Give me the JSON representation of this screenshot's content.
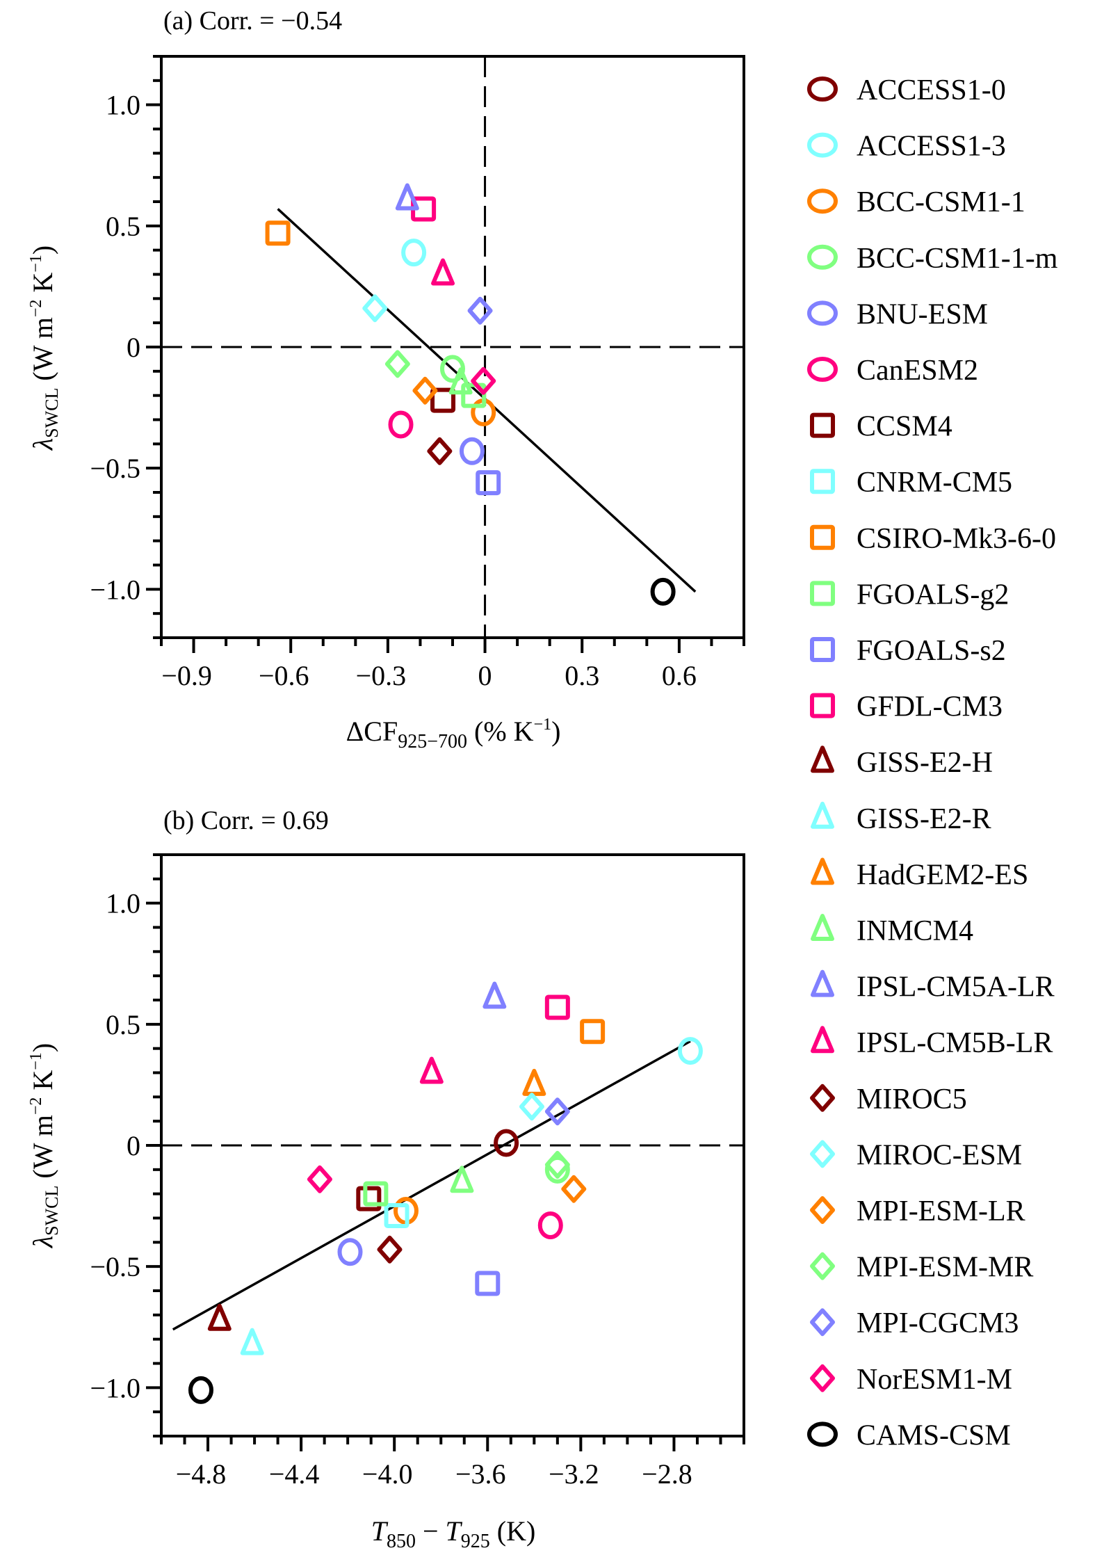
{
  "models": [
    {
      "name": "ACCESS1-0",
      "marker": "circle",
      "color": "#800000"
    },
    {
      "name": "ACCESS1-3",
      "marker": "circle",
      "color": "#80FFFF"
    },
    {
      "name": "BCC-CSM1-1",
      "marker": "circle",
      "color": "#FF8000"
    },
    {
      "name": "BCC-CSM1-1-m",
      "marker": "circle",
      "color": "#80FF80"
    },
    {
      "name": "BNU-ESM",
      "marker": "circle",
      "color": "#8080FF"
    },
    {
      "name": "CanESM2",
      "marker": "circle",
      "color": "#FF0080"
    },
    {
      "name": "CCSM4",
      "marker": "square",
      "color": "#800000"
    },
    {
      "name": "CNRM-CM5",
      "marker": "square",
      "color": "#80FFFF"
    },
    {
      "name": "CSIRO-Mk3-6-0",
      "marker": "square",
      "color": "#FF8000"
    },
    {
      "name": "FGOALS-g2",
      "marker": "square",
      "color": "#80FF80"
    },
    {
      "name": "FGOALS-s2",
      "marker": "square",
      "color": "#8080FF"
    },
    {
      "name": "GFDL-CM3",
      "marker": "square",
      "color": "#FF0080"
    },
    {
      "name": "GISS-E2-H",
      "marker": "triangle",
      "color": "#800000"
    },
    {
      "name": "GISS-E2-R",
      "marker": "triangle",
      "color": "#80FFFF"
    },
    {
      "name": "HadGEM2-ES",
      "marker": "triangle",
      "color": "#FF8000"
    },
    {
      "name": "INMCM4",
      "marker": "triangle",
      "color": "#80FF80"
    },
    {
      "name": "IPSL-CM5A-LR",
      "marker": "triangle",
      "color": "#8080FF"
    },
    {
      "name": "IPSL-CM5B-LR",
      "marker": "triangle",
      "color": "#FF0080"
    },
    {
      "name": "MIROC5",
      "marker": "diamond",
      "color": "#800000"
    },
    {
      "name": "MIROC-ESM",
      "marker": "diamond",
      "color": "#80FFFF"
    },
    {
      "name": "MPI-ESM-LR",
      "marker": "diamond",
      "color": "#FF8000"
    },
    {
      "name": "MPI-ESM-MR",
      "marker": "diamond",
      "color": "#80FF80"
    },
    {
      "name": "MPI-CGCM3",
      "marker": "diamond",
      "color": "#8080FF"
    },
    {
      "name": "NorESM1-M",
      "marker": "diamond",
      "color": "#FF0080"
    },
    {
      "name": "CAMS-CSM",
      "marker": "circle",
      "color": "#000000"
    }
  ],
  "chart_data": [
    {
      "type": "scatter",
      "panel": "a",
      "title": "(a) Corr. = −0.54",
      "correlation": -0.54,
      "xlabel": {
        "main": "ΔCF",
        "sub": "925−700",
        "rest": " (% K",
        "sup": "−1",
        "end": ")"
      },
      "ylabel": {
        "main": "λ",
        "sub": "SWCL",
        "rest": " (W m",
        "sup1": "−2",
        "mid": " K",
        "sup2": "−1",
        "end": ")"
      },
      "xlim": [
        -1.0,
        0.8
      ],
      "ylim": [
        -1.2,
        1.2
      ],
      "xticks": [
        -0.9,
        -0.6,
        -0.3,
        0,
        0.3,
        0.6
      ],
      "xtick_labels": [
        "−0.9",
        "−0.6",
        "−0.3",
        "0",
        "0.3",
        "0.6"
      ],
      "xminor_step": 0.1,
      "yticks": [
        -1.0,
        -0.5,
        0,
        0.5,
        1.0
      ],
      "ytick_labels": [
        "−1.0",
        "−0.5",
        "0",
        "0.5",
        "1.0"
      ],
      "yminor_step": 0.1,
      "zero_lines": {
        "x": 0,
        "y": 0
      },
      "fit_line": {
        "x": [
          -0.64,
          0.65
        ],
        "y": [
          0.57,
          -1.01
        ]
      },
      "points": [
        {
          "model": "ACCESS1-3",
          "x": -0.22,
          "y": 0.39
        },
        {
          "model": "BCC-CSM1-1",
          "x": -0.005,
          "y": -0.27
        },
        {
          "model": "BCC-CSM1-1-m",
          "x": -0.1,
          "y": -0.09
        },
        {
          "model": "BNU-ESM",
          "x": -0.04,
          "y": -0.43
        },
        {
          "model": "CanESM2",
          "x": -0.26,
          "y": -0.32
        },
        {
          "model": "CCSM4",
          "x": -0.13,
          "y": -0.22
        },
        {
          "model": "CSIRO-Mk3-6-0",
          "x": -0.64,
          "y": 0.47
        },
        {
          "model": "FGOALS-g2",
          "x": -0.035,
          "y": -0.2
        },
        {
          "model": "FGOALS-s2",
          "x": 0.01,
          "y": -0.56
        },
        {
          "model": "GFDL-CM3",
          "x": -0.19,
          "y": 0.57
        },
        {
          "model": "INMCM4",
          "x": -0.075,
          "y": -0.15
        },
        {
          "model": "IPSL-CM5A-LR",
          "x": -0.24,
          "y": 0.61
        },
        {
          "model": "IPSL-CM5B-LR",
          "x": -0.13,
          "y": 0.3
        },
        {
          "model": "MIROC5",
          "x": -0.14,
          "y": -0.43
        },
        {
          "model": "MIROC-ESM",
          "x": -0.34,
          "y": 0.16
        },
        {
          "model": "MPI-ESM-LR",
          "x": -0.185,
          "y": -0.18
        },
        {
          "model": "MPI-ESM-MR",
          "x": -0.27,
          "y": -0.07
        },
        {
          "model": "MPI-CGCM3",
          "x": -0.015,
          "y": 0.15
        },
        {
          "model": "NorESM1-M",
          "x": -0.005,
          "y": -0.14
        },
        {
          "model": "CAMS-CSM",
          "x": 0.55,
          "y": -1.01
        }
      ]
    },
    {
      "type": "scatter",
      "panel": "b",
      "title": "(b) Corr. = 0.69",
      "correlation": 0.69,
      "xlabel": {
        "t1": "T",
        "s1": "850",
        "op": " − ",
        "t2": "T",
        "s2": "925",
        "rest": " (K)"
      },
      "ylabel": {
        "main": "λ",
        "sub": "SWCL",
        "rest": " (W m",
        "sup1": "−2",
        "mid": " K",
        "sup2": "−1",
        "end": ")"
      },
      "xlim": [
        -5.0,
        -2.5
      ],
      "ylim": [
        -1.2,
        1.2
      ],
      "xticks": [
        -4.8,
        -4.4,
        -4.0,
        -3.6,
        -3.2,
        -2.8
      ],
      "xtick_labels": [
        "−4.8",
        "−4.4",
        "−4.0",
        "−3.6",
        "−3.2",
        "−2.8"
      ],
      "xminor_step": 0.1,
      "yticks": [
        -1.0,
        -0.5,
        0,
        0.5,
        1.0
      ],
      "ytick_labels": [
        "−1.0",
        "−0.5",
        "0",
        "0.5",
        "1.0"
      ],
      "yminor_step": 0.1,
      "zero_lines": {
        "y": 0
      },
      "fit_line": {
        "x": [
          -4.95,
          -2.73
        ],
        "y": [
          -0.76,
          0.43
        ]
      },
      "points": [
        {
          "model": "ACCESS1-0",
          "x": -3.52,
          "y": 0.01
        },
        {
          "model": "ACCESS1-3",
          "x": -2.73,
          "y": 0.39
        },
        {
          "model": "BCC-CSM1-1",
          "x": -3.95,
          "y": -0.27
        },
        {
          "model": "BCC-CSM1-1-m",
          "x": -3.3,
          "y": -0.1
        },
        {
          "model": "BNU-ESM",
          "x": -4.19,
          "y": -0.44
        },
        {
          "model": "CanESM2",
          "x": -3.33,
          "y": -0.33
        },
        {
          "model": "CCSM4",
          "x": -4.11,
          "y": -0.22
        },
        {
          "model": "CNRM-CM5",
          "x": -3.99,
          "y": -0.29
        },
        {
          "model": "CSIRO-Mk3-6-0",
          "x": -3.15,
          "y": 0.47
        },
        {
          "model": "FGOALS-g2",
          "x": -4.08,
          "y": -0.2
        },
        {
          "model": "FGOALS-s2",
          "x": -3.6,
          "y": -0.57
        },
        {
          "model": "GFDL-CM3",
          "x": -3.3,
          "y": 0.57
        },
        {
          "model": "GISS-E2-H",
          "x": -4.75,
          "y": -0.72
        },
        {
          "model": "GISS-E2-R",
          "x": -4.61,
          "y": -0.82
        },
        {
          "model": "HadGEM2-ES",
          "x": -3.4,
          "y": 0.25
        },
        {
          "model": "INMCM4",
          "x": -3.71,
          "y": -0.15
        },
        {
          "model": "IPSL-CM5A-LR",
          "x": -3.57,
          "y": 0.61
        },
        {
          "model": "IPSL-CM5B-LR",
          "x": -3.84,
          "y": 0.3
        },
        {
          "model": "MIROC5",
          "x": -4.02,
          "y": -0.43
        },
        {
          "model": "MIROC-ESM",
          "x": -3.41,
          "y": 0.16
        },
        {
          "model": "MPI-ESM-LR",
          "x": -3.23,
          "y": -0.18
        },
        {
          "model": "MPI-ESM-MR",
          "x": -3.3,
          "y": -0.08
        },
        {
          "model": "MPI-CGCM3",
          "x": -3.3,
          "y": 0.14
        },
        {
          "model": "NorESM1-M",
          "x": -4.32,
          "y": -0.14
        },
        {
          "model": "CAMS-CSM",
          "x": -4.83,
          "y": -1.01
        }
      ]
    }
  ]
}
